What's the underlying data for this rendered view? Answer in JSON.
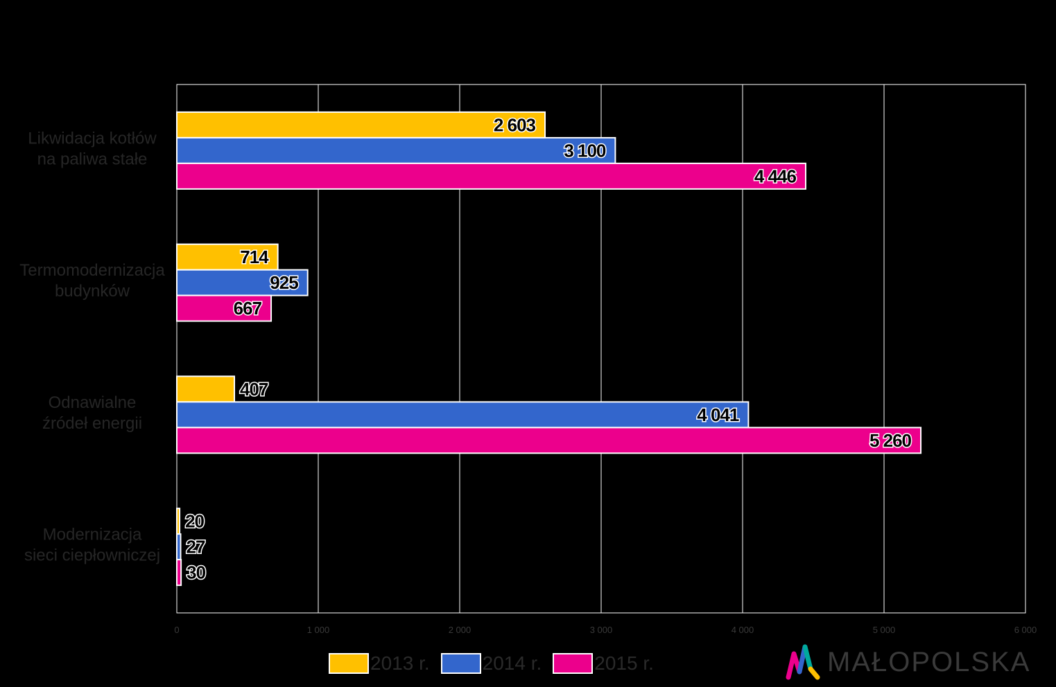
{
  "chart_data": {
    "type": "bar",
    "orientation": "horizontal",
    "categories": [
      "Likwidacja kotłów\nna paliwa stałe",
      "Termomodernizacja\nbudynków",
      "Odnawialne\nźródeł energii",
      "Modernizacja\nsieci ciepłowniczej"
    ],
    "series": [
      {
        "name": "2013 r.",
        "color": "#FFC000",
        "values": [
          2603,
          714,
          407,
          20
        ],
        "labels": [
          "2 603",
          "714",
          "407",
          "20"
        ]
      },
      {
        "name": "2014 r.",
        "color": "#3366CC",
        "values": [
          3100,
          925,
          4041,
          27
        ],
        "labels": [
          "3 100",
          "925",
          "4 041",
          "27"
        ]
      },
      {
        "name": "2015 r.",
        "color": "#EC008C",
        "values": [
          4446,
          667,
          5260,
          30
        ],
        "labels": [
          "4 446",
          "667",
          "5 260",
          "30"
        ]
      }
    ],
    "xlim": [
      0,
      6000
    ],
    "xticks": [
      0,
      1000,
      2000,
      3000,
      4000,
      5000,
      6000
    ],
    "xtick_labels": [
      "0",
      "1 000",
      "2 000",
      "3 000",
      "4 000",
      "5 000",
      "6 000"
    ],
    "grid": true,
    "legend_position": "bottom"
  },
  "logo": {
    "text": "MAŁOPOLSKA",
    "icon": "malopolska-logo-icon",
    "colors": [
      "#EC008C",
      "#FFC000",
      "#3366CC",
      "#00A99D"
    ]
  }
}
